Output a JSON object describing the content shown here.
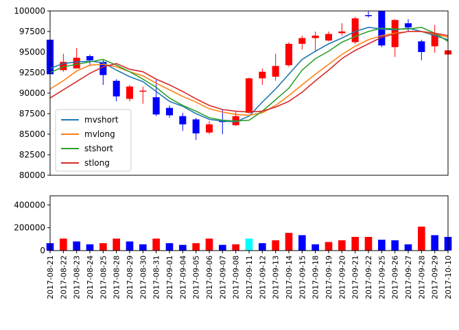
{
  "chart_data": [
    {
      "type": "candlestick",
      "categories": [
        "2017-08-21",
        "2017-08-22",
        "2017-08-23",
        "2017-08-24",
        "2017-08-25",
        "2017-08-28",
        "2017-08-29",
        "2017-08-30",
        "2017-08-31",
        "2017-09-01",
        "2017-09-04",
        "2017-09-05",
        "2017-09-06",
        "2017-09-07",
        "2017-09-08",
        "2017-09-11",
        "2017-09-12",
        "2017-09-13",
        "2017-09-14",
        "2017-09-15",
        "2017-09-18",
        "2017-09-19",
        "2017-09-20",
        "2017-09-21",
        "2017-09-22",
        "2017-09-25",
        "2017-09-26",
        "2017-09-27",
        "2017-09-28",
        "2017-09-29",
        "2017-10-10"
      ],
      "ylim": [
        80000,
        100000
      ],
      "yticks": [
        "80000",
        "82500",
        "85000",
        "87500",
        "90000",
        "92500",
        "95000",
        "97500",
        "100000"
      ],
      "colors": {
        "up": "#ff0000",
        "down": "#0000ff"
      },
      "candles": [
        {
          "open": 96500,
          "close": 92300,
          "high": 96600,
          "low": 92000,
          "dir": "down"
        },
        {
          "open": 92800,
          "close": 93800,
          "high": 94800,
          "low": 92600,
          "dir": "up"
        },
        {
          "open": 93000,
          "close": 94300,
          "high": 95500,
          "low": 93000,
          "dir": "up"
        },
        {
          "open": 94500,
          "close": 94000,
          "high": 94700,
          "low": 93300,
          "dir": "down"
        },
        {
          "open": 93800,
          "close": 92200,
          "high": 94000,
          "low": 91000,
          "dir": "down"
        },
        {
          "open": 91500,
          "close": 89600,
          "high": 91700,
          "low": 89000,
          "dir": "down"
        },
        {
          "open": 89300,
          "close": 90800,
          "high": 91000,
          "low": 89000,
          "dir": "up"
        },
        {
          "open": 90200,
          "close": 90300,
          "high": 90800,
          "low": 88700,
          "dir": "up"
        },
        {
          "open": 89500,
          "close": 87400,
          "high": 91600,
          "low": 87200,
          "dir": "down"
        },
        {
          "open": 88200,
          "close": 87300,
          "high": 88500,
          "low": 87000,
          "dir": "down"
        },
        {
          "open": 87200,
          "close": 86200,
          "high": 87600,
          "low": 85400,
          "dir": "down"
        },
        {
          "open": 86800,
          "close": 85100,
          "high": 87000,
          "low": 84300,
          "dir": "down"
        },
        {
          "open": 85200,
          "close": 86200,
          "high": 86600,
          "low": 85000,
          "dir": "up"
        },
        {
          "open": 86600,
          "close": 86600,
          "high": 88000,
          "low": 85000,
          "dir": "down"
        },
        {
          "open": 86100,
          "close": 87200,
          "high": 87800,
          "low": 86000,
          "dir": "up"
        },
        {
          "open": 87600,
          "close": 91800,
          "high": 91900,
          "low": 87500,
          "dir": "up"
        },
        {
          "open": 91800,
          "close": 92600,
          "high": 93000,
          "low": 91000,
          "dir": "up"
        },
        {
          "open": 92000,
          "close": 93300,
          "high": 94800,
          "low": 91500,
          "dir": "up"
        },
        {
          "open": 93400,
          "close": 96000,
          "high": 96200,
          "low": 93200,
          "dir": "up"
        },
        {
          "open": 96000,
          "close": 96700,
          "high": 97000,
          "low": 95300,
          "dir": "up"
        },
        {
          "open": 96700,
          "close": 97000,
          "high": 97500,
          "low": 95000,
          "dir": "up"
        },
        {
          "open": 96400,
          "close": 97200,
          "high": 97500,
          "low": 96300,
          "dir": "up"
        },
        {
          "open": 97300,
          "close": 97500,
          "high": 98500,
          "low": 97000,
          "dir": "up"
        },
        {
          "open": 96200,
          "close": 99100,
          "high": 99300,
          "low": 96000,
          "dir": "up"
        },
        {
          "open": 99500,
          "close": 99400,
          "high": 100000,
          "low": 99200,
          "dir": "down"
        },
        {
          "open": 100000,
          "close": 95800,
          "high": 100000,
          "low": 95600,
          "dir": "down"
        },
        {
          "open": 95600,
          "close": 98900,
          "high": 99000,
          "low": 94400,
          "dir": "up"
        },
        {
          "open": 98500,
          "close": 98000,
          "high": 99000,
          "low": 97500,
          "dir": "down"
        },
        {
          "open": 96300,
          "close": 95000,
          "high": 96500,
          "low": 94000,
          "dir": "down"
        },
        {
          "open": 95700,
          "close": 97200,
          "high": 98300,
          "low": 94900,
          "dir": "up"
        },
        {
          "open": 94700,
          "close": 95200,
          "high": 95400,
          "low": 94500,
          "dir": "up"
        }
      ],
      "series": [
        {
          "name": "mvshort",
          "color": "#1f77b4",
          "values": [
            93000,
            93600,
            93800,
            93900,
            93700,
            92800,
            92000,
            91400,
            90200,
            89000,
            88400,
            87500,
            86800,
            86600,
            86500,
            87200,
            88900,
            90500,
            92300,
            94100,
            95100,
            96000,
            96700,
            97500,
            98000,
            97800,
            97700,
            97900,
            97500,
            97000,
            96500
          ]
        },
        {
          "name": "mvlong",
          "color": "#ff7f0e",
          "values": [
            90500,
            91500,
            92700,
            93400,
            93500,
            93200,
            92600,
            92100,
            91200,
            90400,
            89600,
            88900,
            88100,
            87700,
            87400,
            87300,
            87600,
            88500,
            89700,
            91000,
            92300,
            93500,
            94700,
            95700,
            96500,
            97000,
            97300,
            97500,
            97500,
            97200,
            96800
          ]
        },
        {
          "name": "stshort",
          "color": "#2ca02c",
          "values": [
            92500,
            93200,
            93500,
            93800,
            94100,
            93400,
            92600,
            91700,
            90700,
            89400,
            88500,
            87800,
            87000,
            86700,
            86600,
            86700,
            87800,
            89200,
            90600,
            92800,
            94200,
            95100,
            96200,
            96900,
            97500,
            97900,
            97800,
            97800,
            98000,
            97300,
            96300
          ]
        },
        {
          "name": "stlong",
          "color": "#d62728",
          "values": [
            89400,
            90400,
            91400,
            92400,
            93200,
            93600,
            92900,
            92600,
            91700,
            91000,
            90200,
            89300,
            88500,
            88000,
            87800,
            87700,
            87800,
            88300,
            89000,
            90100,
            91500,
            92800,
            94200,
            95200,
            96000,
            96800,
            97200,
            97500,
            97500,
            97300,
            97000
          ]
        }
      ],
      "legend": {
        "placement": "lower-left",
        "entries": [
          "mvshort",
          "mvlong",
          "stshort",
          "stlong"
        ]
      }
    },
    {
      "type": "bar",
      "categories": [
        "2017-08-21",
        "2017-08-22",
        "2017-08-23",
        "2017-08-24",
        "2017-08-25",
        "2017-08-28",
        "2017-08-29",
        "2017-08-30",
        "2017-08-31",
        "2017-09-01",
        "2017-09-04",
        "2017-09-05",
        "2017-09-06",
        "2017-09-07",
        "2017-09-08",
        "2017-09-11",
        "2017-09-12",
        "2017-09-13",
        "2017-09-14",
        "2017-09-15",
        "2017-09-18",
        "2017-09-19",
        "2017-09-20",
        "2017-09-21",
        "2017-09-22",
        "2017-09-25",
        "2017-09-26",
        "2017-09-27",
        "2017-09-28",
        "2017-09-29",
        "2017-10-10"
      ],
      "ylim": [
        0,
        480000
      ],
      "yticks": [
        "0",
        "200000",
        "400000"
      ],
      "values": [
        65000,
        105000,
        80000,
        55000,
        65000,
        105000,
        80000,
        55000,
        105000,
        65000,
        50000,
        65000,
        105000,
        50000,
        55000,
        105000,
        65000,
        90000,
        155000,
        135000,
        55000,
        75000,
        90000,
        120000,
        120000,
        95000,
        90000,
        55000,
        210000,
        135000,
        120000
      ],
      "bar_colors": [
        "#0000ff",
        "#ff0000",
        "#0000ff",
        "#0000ff",
        "#ff0000",
        "#ff0000",
        "#0000ff",
        "#0000ff",
        "#ff0000",
        "#0000ff",
        "#0000ff",
        "#ff0000",
        "#ff0000",
        "#0000ff",
        "#ff0000",
        "#00ffff",
        "#0000ff",
        "#ff0000",
        "#ff0000",
        "#0000ff",
        "#0000ff",
        "#ff0000",
        "#ff0000",
        "#ff0000",
        "#ff0000",
        "#0000ff",
        "#0000ff",
        "#0000ff",
        "#ff0000",
        "#0000ff",
        "#0000ff"
      ]
    }
  ]
}
